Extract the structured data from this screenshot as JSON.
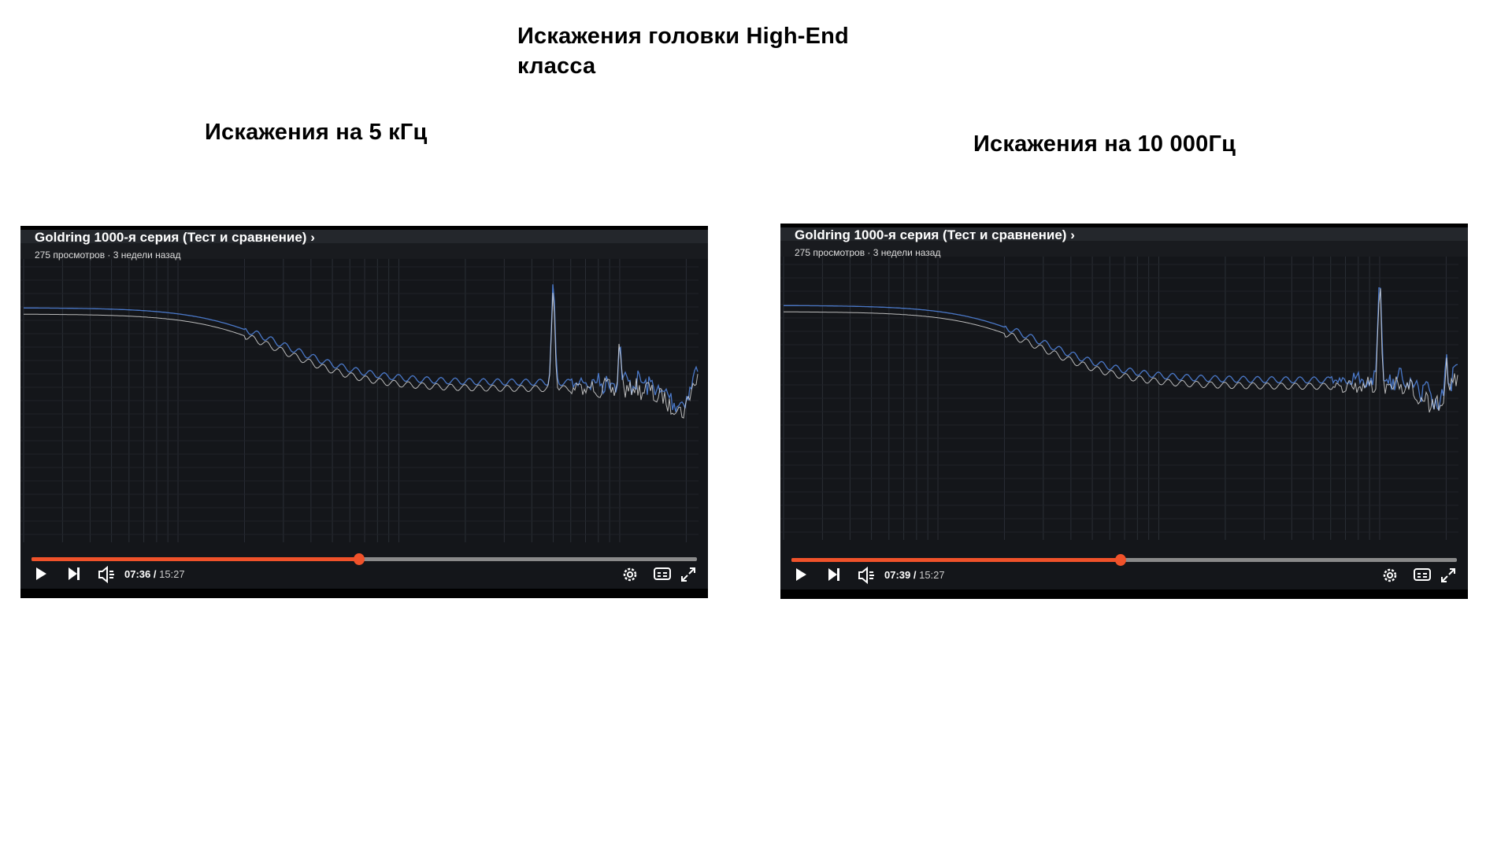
{
  "headings": {
    "main_title": "Искажения головки High-End класса",
    "left_caption": "Искажения на 5 кГц",
    "right_caption": "Искажения на 10 000Гц"
  },
  "players": [
    {
      "video_title": "Goldring 1000-я серия (Тест и сравнение)",
      "meta": "275 просмотров · 3 недели назад",
      "current_time": "07:36",
      "duration": "15:27",
      "progress": 0.492,
      "peaks_khz": [
        5,
        10
      ]
    },
    {
      "video_title": "Goldring 1000-я серия (Тест и сравнение)",
      "meta": "275 просмотров · 3 недели назад",
      "current_time": "07:39",
      "duration": "15:27",
      "progress": 0.495,
      "peaks_khz": [
        10,
        20
      ]
    }
  ],
  "colors": {
    "progress": "#f0522a",
    "trace_a": "#4a78c8",
    "trace_b": "#d8d8d8",
    "background": "#14161a"
  },
  "icons": [
    "play-icon",
    "next-icon",
    "volume-muted-icon",
    "settings-icon",
    "subtitles-icon",
    "fullscreen-icon",
    "chevron-right-icon"
  ]
}
